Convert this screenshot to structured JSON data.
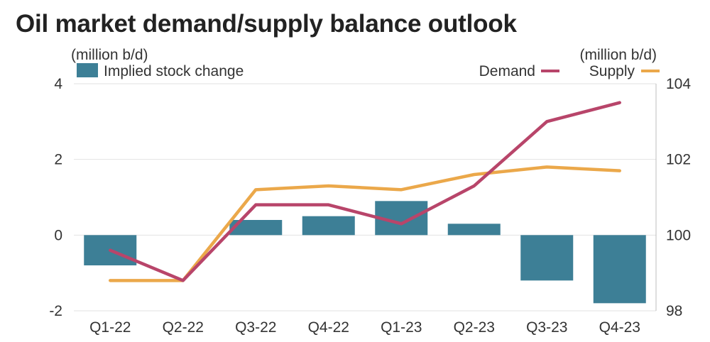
{
  "header": {
    "title": "Oil market demand/supply balance outlook"
  },
  "chart_data": {
    "type": "bar+line",
    "categories": [
      "Q1-22",
      "Q2-22",
      "Q3-22",
      "Q4-22",
      "Q1-23",
      "Q2-23",
      "Q3-23",
      "Q4-23"
    ],
    "left_axis": {
      "unit": "(million b/d)",
      "ylim": [
        -2,
        4
      ],
      "ticks": [
        -2,
        0,
        2,
        4
      ]
    },
    "right_axis": {
      "unit": "(million b/d)",
      "ylim": [
        98,
        104
      ],
      "ticks": [
        98,
        100,
        102,
        104
      ]
    },
    "bars": {
      "name": "Implied stock change",
      "axis": "left",
      "color": "#3d7f96",
      "values": [
        -0.8,
        0.0,
        0.4,
        0.5,
        0.9,
        0.3,
        -1.2,
        -1.8
      ]
    },
    "lines": [
      {
        "name": "Demand",
        "axis": "right",
        "color": "#b8456a",
        "values": [
          99.6,
          98.8,
          100.8,
          100.8,
          100.3,
          101.3,
          103.0,
          103.5
        ]
      },
      {
        "name": "Supply",
        "axis": "right",
        "color": "#eba84a",
        "values": [
          98.8,
          98.8,
          101.2,
          101.3,
          101.2,
          101.6,
          101.8,
          101.7
        ]
      }
    ],
    "grid": true,
    "legend": "top"
  }
}
